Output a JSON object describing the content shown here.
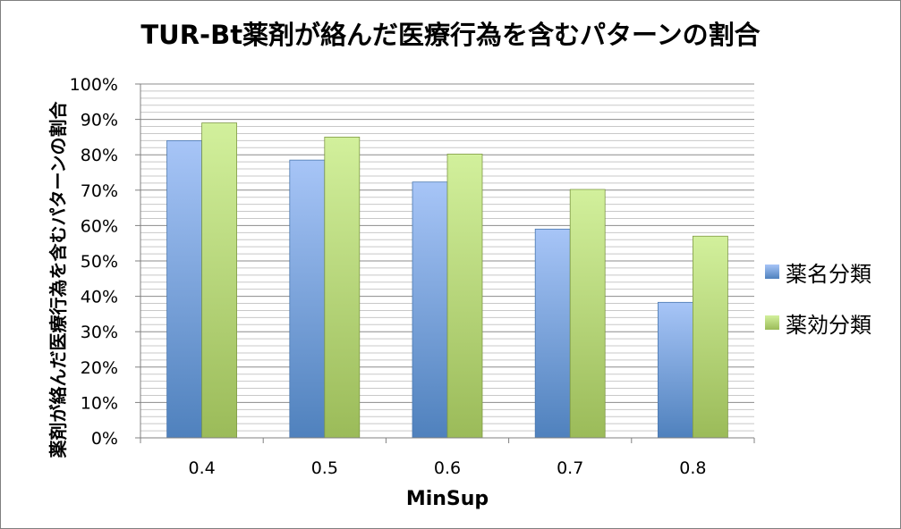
{
  "chart_data": {
    "type": "bar",
    "title": "TUR-Bt薬剤が絡んだ医療行為を含むパターンの割合",
    "xlabel": "MinSup",
    "ylabel": "薬剤が絡んだ医療行為を含むパターンの割合",
    "categories": [
      "0.4",
      "0.5",
      "0.6",
      "0.7",
      "0.8"
    ],
    "ylim": [
      0,
      100
    ],
    "yticks": [
      "0%",
      "10%",
      "20%",
      "30%",
      "40%",
      "50%",
      "60%",
      "70%",
      "80%",
      "90%",
      "100%"
    ],
    "grid": true,
    "legend_position": "right",
    "series": [
      {
        "name": "薬名分類",
        "values": [
          84,
          78.5,
          72.3,
          59,
          38.3
        ],
        "color": "#4f81bd",
        "color_light": "#a7c5f7"
      },
      {
        "name": "薬効分類",
        "values": [
          89,
          85,
          80.2,
          70.2,
          57
        ],
        "color": "#9bbb59",
        "color_light": "#d2f09c"
      }
    ]
  }
}
